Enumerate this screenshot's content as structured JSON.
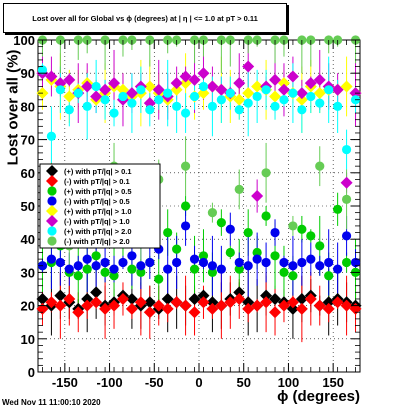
{
  "chart_data": {
    "type": "scatter",
    "title": "Lost over all for Global vs ϕ (degrees) at | η | <= 1.0 at pT > 0.11",
    "xlabel": "ϕ (degrees)",
    "ylabel": "Lost over all (%)",
    "xlim": [
      -180,
      180
    ],
    "ylim": [
      0,
      100
    ],
    "x_ticks": [
      -150,
      -100,
      -50,
      0,
      50,
      100,
      150
    ],
    "y_ticks": [
      0,
      10,
      20,
      30,
      40,
      50,
      60,
      70,
      80,
      90,
      100
    ],
    "grid": true,
    "legend_position": "left-middle",
    "series": [
      {
        "name": "(+) with pT/|q| > 0.1",
        "color": "#000000",
        "x": [
          -175,
          -165,
          -155,
          -145,
          -135,
          -125,
          -115,
          -105,
          -95,
          -85,
          -75,
          -65,
          -55,
          -45,
          -35,
          -25,
          -15,
          -5,
          5,
          15,
          25,
          35,
          45,
          55,
          65,
          75,
          85,
          95,
          105,
          115,
          125,
          135,
          145,
          155,
          165,
          175
        ],
        "y": [
          22,
          20,
          23,
          21,
          19,
          22,
          24,
          20,
          21,
          23,
          22,
          20,
          21,
          19,
          22,
          21,
          20,
          22,
          23,
          21,
          20,
          22,
          24,
          21,
          20,
          23,
          22,
          21,
          19,
          22,
          23,
          20,
          21,
          22,
          21,
          20
        ]
      },
      {
        "name": "(-) with pT/|q| > 0.1",
        "color": "#ff0000",
        "x": [
          -175,
          -165,
          -155,
          -145,
          -135,
          -125,
          -115,
          -105,
          -95,
          -85,
          -75,
          -65,
          -55,
          -45,
          -35,
          -25,
          -15,
          -5,
          5,
          15,
          25,
          35,
          45,
          55,
          65,
          75,
          85,
          95,
          105,
          115,
          125,
          135,
          145,
          155,
          165,
          175
        ],
        "y": [
          19,
          21,
          20,
          22,
          18,
          20,
          21,
          19,
          20,
          22,
          19,
          21,
          18,
          20,
          19,
          21,
          20,
          18,
          21,
          19,
          20,
          21,
          22,
          19,
          20,
          21,
          18,
          20,
          21,
          19,
          22,
          20,
          19,
          21,
          20,
          19
        ]
      },
      {
        "name": "(+) with pT/|q| > 0.5",
        "color": "#00cc00",
        "x": [
          -175,
          -165,
          -155,
          -145,
          -135,
          -125,
          -115,
          -105,
          -95,
          -85,
          -75,
          -65,
          -55,
          -45,
          -35,
          -25,
          -15,
          -5,
          5,
          15,
          25,
          35,
          45,
          55,
          65,
          75,
          85,
          95,
          105,
          115,
          125,
          135,
          145,
          155,
          165,
          175
        ],
        "y": [
          32,
          33,
          38,
          30,
          29,
          31,
          35,
          30,
          29,
          40,
          31,
          30,
          33,
          28,
          42,
          37,
          50,
          31,
          35,
          30,
          45,
          36,
          31,
          42,
          36,
          47,
          35,
          30,
          29,
          43,
          41,
          38,
          29,
          49,
          33,
          30
        ]
      },
      {
        "name": "(-) with pT/|q| > 0.5",
        "color": "#0000ee",
        "x": [
          -175,
          -165,
          -155,
          -145,
          -135,
          -125,
          -115,
          -105,
          -95,
          -85,
          -75,
          -65,
          -55,
          -45,
          -35,
          -25,
          -15,
          -5,
          5,
          15,
          25,
          35,
          45,
          55,
          65,
          75,
          85,
          95,
          105,
          115,
          125,
          135,
          145,
          155,
          165,
          175
        ],
        "y": [
          32,
          34,
          33,
          31,
          32,
          34,
          32,
          33,
          31,
          33,
          35,
          32,
          33,
          37,
          31,
          33,
          44,
          34,
          33,
          32,
          31,
          43,
          33,
          32,
          34,
          33,
          42,
          33,
          32,
          33,
          34,
          32,
          33,
          31,
          41,
          33
        ]
      },
      {
        "name": "(+) with pT/|q| > 1.0",
        "color": "#ffff00",
        "x": [
          -175,
          -165,
          -155,
          -145,
          -135,
          -125,
          -115,
          -105,
          -95,
          -85,
          -75,
          -65,
          -55,
          -45,
          -35,
          -25,
          -15,
          -5,
          5,
          15,
          25,
          35,
          45,
          55,
          65,
          75,
          85,
          95,
          105,
          115,
          125,
          135,
          145,
          155,
          165,
          175
        ],
        "y": [
          84,
          88,
          86,
          83,
          85,
          87,
          82,
          84,
          86,
          85,
          83,
          84,
          86,
          84,
          82,
          85,
          87,
          83,
          84,
          86,
          85,
          83,
          82,
          84,
          86,
          85,
          83,
          87,
          84,
          82,
          86,
          84,
          85,
          85,
          86,
          84
        ]
      },
      {
        "name": "(-) with pT/|q| > 1.0",
        "color": "#cc00cc",
        "x": [
          -175,
          -165,
          -155,
          -145,
          -135,
          -125,
          -115,
          -105,
          -95,
          -85,
          -75,
          -65,
          -55,
          -45,
          -35,
          -25,
          -15,
          -5,
          5,
          15,
          25,
          35,
          45,
          55,
          65,
          75,
          85,
          95,
          105,
          115,
          125,
          135,
          145,
          155,
          165,
          175
        ],
        "y": [
          90,
          89,
          87,
          88,
          84,
          86,
          83,
          85,
          87,
          82,
          84,
          86,
          81,
          85,
          83,
          87,
          89,
          88,
          90,
          86,
          85,
          84,
          87,
          92,
          53,
          86,
          88,
          85,
          89,
          84,
          87,
          88,
          86,
          85,
          57,
          84
        ]
      },
      {
        "name": "(+) with pT/|q| > 2.0",
        "color": "#00ffff",
        "x": [
          -175,
          -165,
          -155,
          -145,
          -135,
          -125,
          -115,
          -105,
          -95,
          -85,
          -75,
          -65,
          -55,
          -45,
          -35,
          -25,
          -15,
          -5,
          5,
          15,
          25,
          35,
          45,
          55,
          65,
          75,
          85,
          95,
          105,
          115,
          125,
          135,
          145,
          155,
          165,
          175
        ],
        "y": [
          91,
          71,
          85,
          79,
          84,
          80,
          86,
          82,
          78,
          83,
          81,
          85,
          79,
          82,
          84,
          80,
          78,
          83,
          86,
          80,
          82,
          84,
          79,
          81,
          83,
          85,
          80,
          82,
          84,
          79,
          83,
          81,
          85,
          80,
          67,
          82
        ]
      },
      {
        "name": "(-) with pT/|q| > 2.0",
        "color": "#66cc55",
        "x": [
          -175,
          -165,
          -155,
          -145,
          -135,
          -125,
          -115,
          -105,
          -95,
          -85,
          -75,
          -65,
          -55,
          -45,
          -35,
          -25,
          -15,
          -5,
          5,
          15,
          25,
          35,
          45,
          55,
          65,
          75,
          85,
          95,
          105,
          115,
          125,
          135,
          145,
          155,
          165,
          175
        ],
        "y": [
          100,
          60,
          100,
          38,
          100,
          100,
          50,
          100,
          62,
          100,
          100,
          40,
          100,
          58,
          100,
          100,
          62,
          100,
          100,
          48,
          100,
          100,
          55,
          100,
          100,
          60,
          100,
          100,
          44,
          100,
          100,
          62,
          100,
          100,
          52,
          100
        ]
      }
    ]
  },
  "timestamp": "Wed Nov 11 11:00:10 2020"
}
